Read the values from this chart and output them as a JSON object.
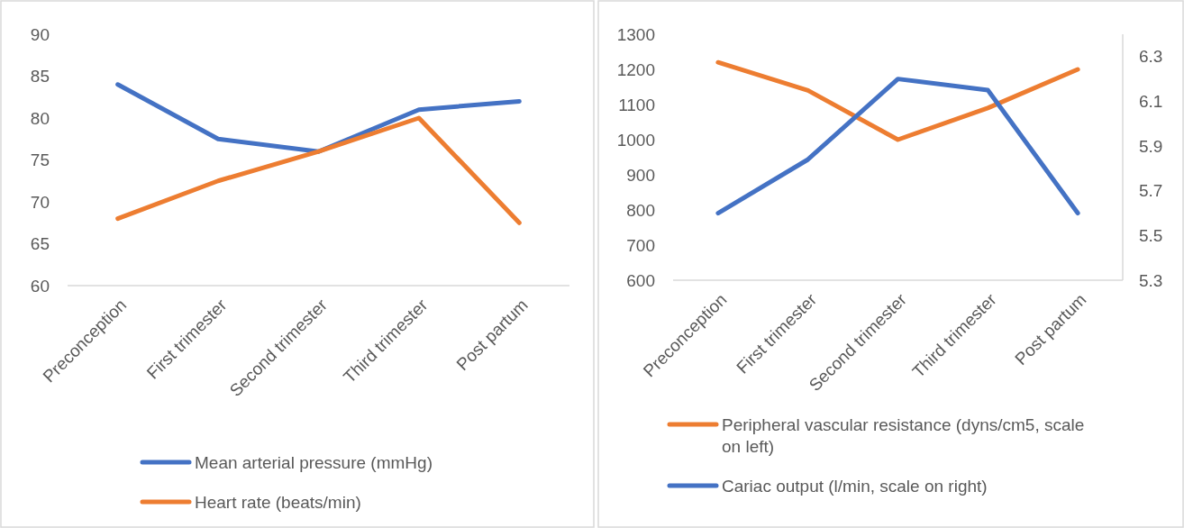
{
  "chart_data": [
    {
      "type": "line",
      "categories": [
        "Preconception",
        "First trimester",
        "Second trimester",
        "Third trimester",
        "Post partum"
      ],
      "ylim": [
        60,
        90
      ],
      "yticks": [
        60,
        65,
        70,
        75,
        80,
        85,
        90
      ],
      "legend": "bottom",
      "grid": false,
      "series": [
        {
          "name": "Mean arterial pressure (mmHg)",
          "color": "#4472c4",
          "values": [
            84,
            77.5,
            76,
            81,
            82
          ]
        },
        {
          "name": "Heart rate (beats/min)",
          "color": "#ed7d31",
          "values": [
            68,
            72.5,
            76,
            80,
            67.5
          ]
        }
      ]
    },
    {
      "type": "line",
      "categories": [
        "Preconception",
        "First trimester",
        "Second trimester",
        "Third trimester",
        "Post partum"
      ],
      "ylim": [
        600,
        1300
      ],
      "yticks": [
        600,
        700,
        800,
        900,
        1000,
        1100,
        1200,
        1300
      ],
      "y2lim": [
        5.3,
        6.4
      ],
      "y2ticks": [
        5.3,
        5.5,
        5.7,
        5.9,
        6.1,
        6.3
      ],
      "legend": "bottom",
      "grid": false,
      "series": [
        {
          "name": "Peripheral vascular resistance (dyns/cm5, scale on left)",
          "color": "#ed7d31",
          "values": [
            1220,
            1140,
            1000,
            1090,
            1200
          ]
        },
        {
          "name": "Cariac output (l/min, scale on right)",
          "color": "#4472c4",
          "values": [
            5.6,
            5.84,
            6.2,
            6.15,
            5.6
          ],
          "axis": "y2"
        }
      ]
    }
  ]
}
